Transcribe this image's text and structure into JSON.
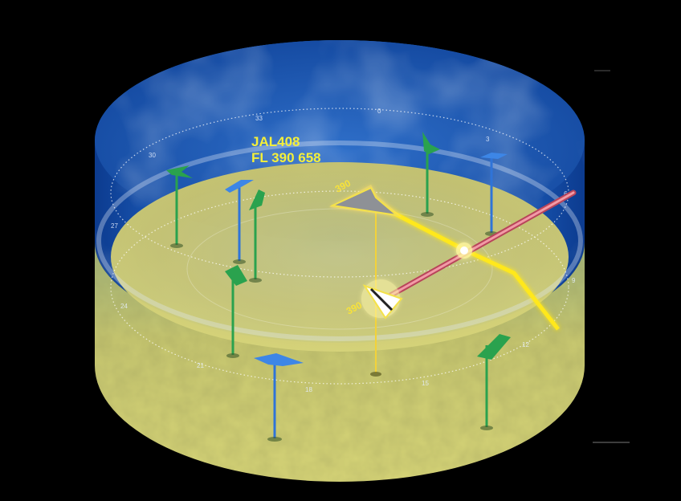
{
  "selected_aircraft": {
    "callsign": "JAL408",
    "flight_info": "FL 390 658"
  },
  "altitude_labels": [
    {
      "id": "intruder",
      "text": "390"
    },
    {
      "id": "ownship",
      "text": "390"
    }
  ],
  "compass_labels": [
    "0",
    "3",
    "6",
    "9",
    "12",
    "15",
    "18",
    "21",
    "24",
    "27",
    "30",
    "33"
  ],
  "traffic": [
    {
      "id": "traffic-green-1",
      "color": "#26a24e"
    },
    {
      "id": "traffic-green-2",
      "color": "#26a24e"
    },
    {
      "id": "traffic-green-3",
      "color": "#26a24e"
    },
    {
      "id": "traffic-green-4",
      "color": "#26a24e"
    },
    {
      "id": "traffic-green-5",
      "color": "#26a24e"
    },
    {
      "id": "traffic-blue-1",
      "color": "#2f74d8"
    },
    {
      "id": "traffic-blue-2",
      "color": "#2f74d8"
    },
    {
      "id": "traffic-blue-3",
      "color": "#2f74d8"
    }
  ],
  "colors": {
    "sky": "#1b57b4",
    "ground": "#c9c46a",
    "conflict_path": "#ffe81a",
    "ownship_vector": "#e8707e",
    "green_traffic": "#26a24e",
    "blue_traffic": "#2f74d8"
  }
}
